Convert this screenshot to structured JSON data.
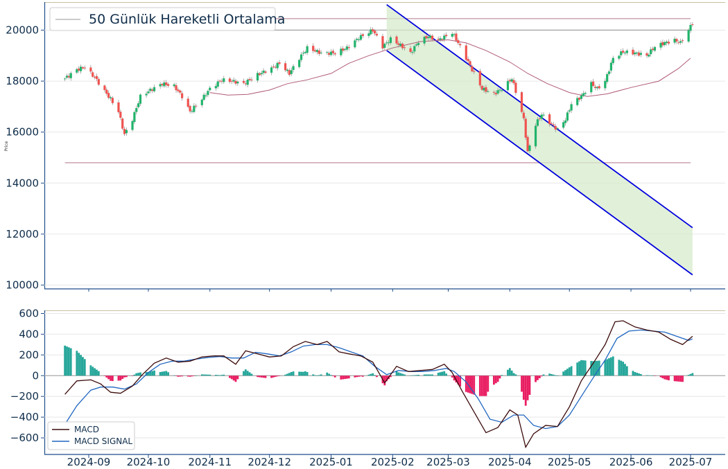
{
  "price_panel": {
    "ylabel": "Price",
    "legend_label": "50 Günlük Hareketli Ortalama",
    "yticks": [
      10000,
      12000,
      14000,
      16000,
      18000,
      20000
    ],
    "ylim": [
      9850,
      21100
    ]
  },
  "macd_panel": {
    "yticks": [
      -600,
      -400,
      -200,
      0,
      200,
      400,
      600
    ],
    "ylim": [
      -760,
      630
    ],
    "legend": {
      "macd": "MACD",
      "signal": "MACD SIGNAL"
    }
  },
  "x_axis": {
    "labels": [
      "2024-09",
      "2024-10",
      "2024-11",
      "2024-12",
      "2025-01",
      "2025-02",
      "2025-03",
      "2025-04",
      "2025-05",
      "2025-06",
      "2025-07"
    ]
  },
  "colors": {
    "up": "#26a69a",
    "up_price": "#21b36b",
    "down": "#ef5350",
    "down_macd": "#e91e63",
    "ma": "#b05a78",
    "channel": "#0000dd",
    "channel_fill": "#d7ebcc",
    "macd": "#3b0a0a",
    "signal": "#1f66c0",
    "hline_gray": "#aaaaaa",
    "hline_rose": "#c9a3b0",
    "top_border": "#c8c0a0",
    "axis": "#1f4e8a"
  },
  "chart_data": {
    "type": "candlestick",
    "horizontal_levels": [
      20450,
      20000,
      14800
    ],
    "channel": {
      "upper": [
        [
          "2025-01-29",
          21000
        ],
        [
          "2025-07-02",
          12250
        ]
      ],
      "lower": [
        [
          "2025-01-29",
          19200
        ],
        [
          "2025-07-02",
          10400
        ]
      ]
    },
    "moving_average_50": [
      [
        "2024-11-01",
        17550
      ],
      [
        "2024-11-10",
        17450
      ],
      [
        "2024-11-20",
        17480
      ],
      [
        "2024-12-01",
        17650
      ],
      [
        "2024-12-10",
        17900
      ],
      [
        "2024-12-20",
        18050
      ],
      [
        "2025-01-01",
        18300
      ],
      [
        "2025-01-10",
        18700
      ],
      [
        "2025-01-20",
        19000
      ],
      [
        "2025-02-01",
        19300
      ],
      [
        "2025-02-15",
        19550
      ],
      [
        "2025-03-01",
        19620
      ],
      [
        "2025-03-10",
        19500
      ],
      [
        "2025-03-20",
        19200
      ],
      [
        "2025-04-01",
        18750
      ],
      [
        "2025-04-10",
        18300
      ],
      [
        "2025-04-20",
        17900
      ],
      [
        "2025-05-01",
        17550
      ],
      [
        "2025-05-10",
        17400
      ],
      [
        "2025-05-20",
        17500
      ],
      [
        "2025-06-01",
        17750
      ],
      [
        "2025-06-15",
        18000
      ],
      [
        "2025-06-25",
        18500
      ],
      [
        "2025-07-01",
        18900
      ]
    ],
    "close_keypoints": [
      [
        "2024-08-20",
        18100
      ],
      [
        "2024-08-26",
        18450
      ],
      [
        "2024-08-30",
        18550
      ],
      [
        "2024-09-04",
        18150
      ],
      [
        "2024-09-09",
        17600
      ],
      [
        "2024-09-12",
        17300
      ],
      [
        "2024-09-16",
        16800
      ],
      [
        "2024-09-19",
        15900
      ],
      [
        "2024-09-23",
        16500
      ],
      [
        "2024-09-27",
        17400
      ],
      [
        "2024-10-01",
        17600
      ],
      [
        "2024-10-08",
        17900
      ],
      [
        "2024-10-14",
        17800
      ],
      [
        "2024-10-18",
        17400
      ],
      [
        "2024-10-22",
        16800
      ],
      [
        "2024-10-28",
        17300
      ],
      [
        "2024-11-01",
        17700
      ],
      [
        "2024-11-07",
        18050
      ],
      [
        "2024-11-12",
        18000
      ],
      [
        "2024-11-18",
        17900
      ],
      [
        "2024-11-25",
        18250
      ],
      [
        "2024-12-02",
        18500
      ],
      [
        "2024-12-06",
        18700
      ],
      [
        "2024-12-11",
        18300
      ],
      [
        "2024-12-16",
        18900
      ],
      [
        "2024-12-20",
        19300
      ],
      [
        "2024-12-27",
        19100
      ],
      [
        "2025-01-03",
        19100
      ],
      [
        "2025-01-09",
        19300
      ],
      [
        "2025-01-15",
        19700
      ],
      [
        "2025-01-22",
        20000
      ],
      [
        "2025-01-27",
        19350
      ],
      [
        "2025-01-31",
        19650
      ],
      [
        "2025-02-06",
        19350
      ],
      [
        "2025-02-10",
        19100
      ],
      [
        "2025-02-14",
        19550
      ],
      [
        "2025-02-19",
        19750
      ],
      [
        "2025-02-24",
        19600
      ],
      [
        "2025-03-03",
        19900
      ],
      [
        "2025-03-06",
        19500
      ],
      [
        "2025-03-10",
        18900
      ],
      [
        "2025-03-14",
        18300
      ],
      [
        "2025-03-18",
        17700
      ],
      [
        "2025-03-24",
        17500
      ],
      [
        "2025-03-28",
        17700
      ],
      [
        "2025-04-02",
        18100
      ],
      [
        "2025-04-04",
        17600
      ],
      [
        "2025-04-08",
        16500
      ],
      [
        "2025-04-10",
        15200
      ],
      [
        "2025-04-14",
        16300
      ],
      [
        "2025-04-17",
        16700
      ],
      [
        "2025-04-22",
        16300
      ],
      [
        "2025-04-25",
        16100
      ],
      [
        "2025-04-29",
        16500
      ],
      [
        "2025-05-02",
        17100
      ],
      [
        "2025-05-07",
        17400
      ],
      [
        "2025-05-12",
        17900
      ],
      [
        "2025-05-15",
        17700
      ],
      [
        "2025-05-19",
        18000
      ],
      [
        "2025-05-23",
        18900
      ],
      [
        "2025-05-28",
        19150
      ],
      [
        "2025-06-03",
        19100
      ],
      [
        "2025-06-09",
        19000
      ],
      [
        "2025-06-13",
        19350
      ],
      [
        "2025-06-18",
        19500
      ],
      [
        "2025-06-23",
        19600
      ],
      [
        "2025-06-26",
        19500
      ],
      [
        "2025-06-30",
        20000
      ],
      [
        "2025-07-02",
        20300
      ]
    ],
    "macd": [
      [
        "2024-08-20",
        -180
      ],
      [
        "2024-08-26",
        -50
      ],
      [
        "2024-09-02",
        -40
      ],
      [
        "2024-09-07",
        -80
      ],
      [
        "2024-09-12",
        -160
      ],
      [
        "2024-09-17",
        -170
      ],
      [
        "2024-09-23",
        -100
      ],
      [
        "2024-09-28",
        10
      ],
      [
        "2024-10-04",
        120
      ],
      [
        "2024-10-10",
        170
      ],
      [
        "2024-10-16",
        130
      ],
      [
        "2024-10-22",
        140
      ],
      [
        "2024-10-28",
        180
      ],
      [
        "2024-11-03",
        190
      ],
      [
        "2024-11-08",
        190
      ],
      [
        "2024-11-14",
        110
      ],
      [
        "2024-11-19",
        240
      ],
      [
        "2024-11-25",
        210
      ],
      [
        "2024-12-01",
        180
      ],
      [
        "2024-12-07",
        190
      ],
      [
        "2024-12-13",
        280
      ],
      [
        "2024-12-19",
        330
      ],
      [
        "2024-12-25",
        300
      ],
      [
        "2024-12-30",
        330
      ],
      [
        "2025-01-05",
        230
      ],
      [
        "2025-01-10",
        210
      ],
      [
        "2025-01-16",
        190
      ],
      [
        "2025-01-22",
        130
      ],
      [
        "2025-01-28",
        -70
      ],
      [
        "2025-02-03",
        90
      ],
      [
        "2025-02-09",
        40
      ],
      [
        "2025-02-15",
        50
      ],
      [
        "2025-02-21",
        60
      ],
      [
        "2025-02-27",
        110
      ],
      [
        "2025-03-03",
        30
      ],
      [
        "2025-03-08",
        -150
      ],
      [
        "2025-03-14",
        -350
      ],
      [
        "2025-03-20",
        -550
      ],
      [
        "2025-03-26",
        -500
      ],
      [
        "2025-04-01",
        -330
      ],
      [
        "2025-04-05",
        -380
      ],
      [
        "2025-04-09",
        -690
      ],
      [
        "2025-04-13",
        -560
      ],
      [
        "2025-04-19",
        -480
      ],
      [
        "2025-04-25",
        -490
      ],
      [
        "2025-05-01",
        -300
      ],
      [
        "2025-05-07",
        -50
      ],
      [
        "2025-05-13",
        120
      ],
      [
        "2025-05-19",
        300
      ],
      [
        "2025-05-24",
        520
      ],
      [
        "2025-05-28",
        530
      ],
      [
        "2025-06-03",
        470
      ],
      [
        "2025-06-09",
        440
      ],
      [
        "2025-06-15",
        420
      ],
      [
        "2025-06-21",
        350
      ],
      [
        "2025-06-27",
        300
      ],
      [
        "2025-07-02",
        380
      ]
    ],
    "signal": [
      [
        "2024-08-20",
        -470
      ],
      [
        "2024-08-26",
        -290
      ],
      [
        "2024-09-02",
        -140
      ],
      [
        "2024-09-07",
        -110
      ],
      [
        "2024-09-13",
        -110
      ],
      [
        "2024-09-19",
        -130
      ],
      [
        "2024-09-25",
        -80
      ],
      [
        "2024-10-01",
        30
      ],
      [
        "2024-10-07",
        110
      ],
      [
        "2024-10-13",
        140
      ],
      [
        "2024-10-19",
        140
      ],
      [
        "2024-10-25",
        160
      ],
      [
        "2024-10-31",
        175
      ],
      [
        "2024-11-06",
        185
      ],
      [
        "2024-11-12",
        170
      ],
      [
        "2024-11-18",
        170
      ],
      [
        "2024-11-24",
        225
      ],
      [
        "2024-11-30",
        210
      ],
      [
        "2024-12-06",
        190
      ],
      [
        "2024-12-12",
        230
      ],
      [
        "2024-12-18",
        285
      ],
      [
        "2024-12-24",
        300
      ],
      [
        "2024-12-30",
        300
      ],
      [
        "2025-01-05",
        270
      ],
      [
        "2025-01-11",
        230
      ],
      [
        "2025-01-17",
        190
      ],
      [
        "2025-01-23",
        90
      ],
      [
        "2025-01-29",
        10
      ],
      [
        "2025-02-04",
        50
      ],
      [
        "2025-02-10",
        40
      ],
      [
        "2025-02-16",
        40
      ],
      [
        "2025-02-22",
        50
      ],
      [
        "2025-02-28",
        70
      ],
      [
        "2025-03-04",
        40
      ],
      [
        "2025-03-10",
        -60
      ],
      [
        "2025-03-16",
        -220
      ],
      [
        "2025-03-22",
        -420
      ],
      [
        "2025-03-28",
        -450
      ],
      [
        "2025-04-03",
        -380
      ],
      [
        "2025-04-08",
        -380
      ],
      [
        "2025-04-13",
        -480
      ],
      [
        "2025-04-19",
        -510
      ],
      [
        "2025-04-25",
        -490
      ],
      [
        "2025-05-01",
        -380
      ],
      [
        "2025-05-07",
        -200
      ],
      [
        "2025-05-13",
        -20
      ],
      [
        "2025-05-19",
        150
      ],
      [
        "2025-05-25",
        360
      ],
      [
        "2025-05-31",
        430
      ],
      [
        "2025-06-06",
        440
      ],
      [
        "2025-06-12",
        430
      ],
      [
        "2025-06-18",
        420
      ],
      [
        "2025-06-24",
        380
      ],
      [
        "2025-06-30",
        340
      ],
      [
        "2025-07-02",
        355
      ]
    ]
  }
}
